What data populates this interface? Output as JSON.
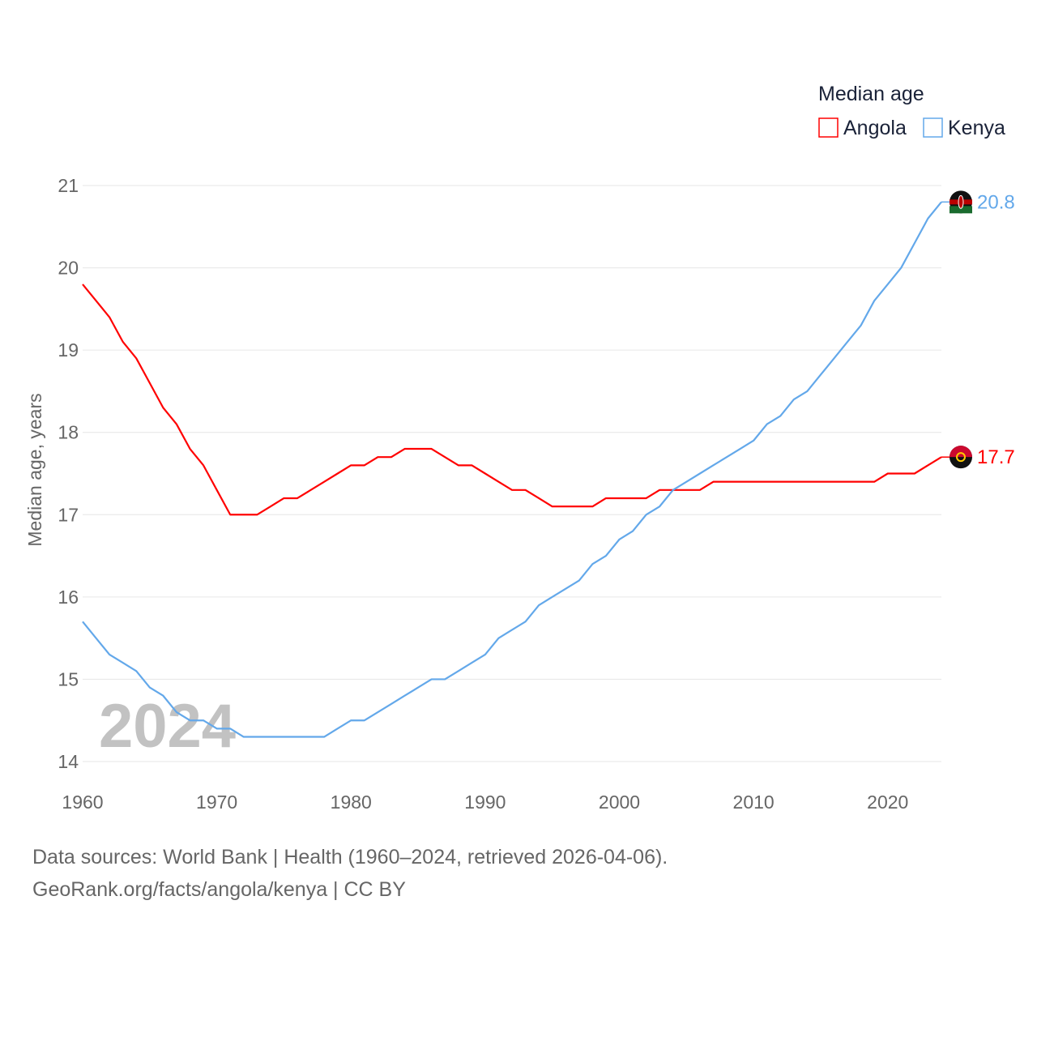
{
  "chart_data": {
    "type": "line",
    "title": "",
    "xlabel": "",
    "ylabel": "Median age, years",
    "xlim": [
      1960,
      2024
    ],
    "ylim": [
      14,
      21
    ],
    "x_ticks": [
      "1960",
      "1970",
      "1980",
      "1990",
      "2000",
      "2010",
      "2020"
    ],
    "y_ticks": [
      "14",
      "15",
      "16",
      "17",
      "18",
      "19",
      "20",
      "21"
    ],
    "grid": true,
    "legend": {
      "title": "Median age",
      "placement": "top-right"
    },
    "watermark_year": "2024",
    "x": [
      1960,
      1961,
      1962,
      1963,
      1964,
      1965,
      1966,
      1967,
      1968,
      1969,
      1970,
      1971,
      1972,
      1973,
      1974,
      1975,
      1976,
      1977,
      1978,
      1979,
      1980,
      1981,
      1982,
      1983,
      1984,
      1985,
      1986,
      1987,
      1988,
      1989,
      1990,
      1991,
      1992,
      1993,
      1994,
      1995,
      1996,
      1997,
      1998,
      1999,
      2000,
      2001,
      2002,
      2003,
      2004,
      2005,
      2006,
      2007,
      2008,
      2009,
      2010,
      2011,
      2012,
      2013,
      2014,
      2015,
      2016,
      2017,
      2018,
      2019,
      2020,
      2021,
      2022,
      2023,
      2024
    ],
    "series": [
      {
        "name": "Angola",
        "color": "#ff0000",
        "end_label": "17.7",
        "values": [
          19.8,
          19.6,
          19.4,
          19.1,
          18.9,
          18.6,
          18.3,
          18.1,
          17.8,
          17.6,
          17.3,
          17.0,
          17.0,
          17.0,
          17.1,
          17.2,
          17.2,
          17.3,
          17.4,
          17.5,
          17.6,
          17.6,
          17.7,
          17.7,
          17.8,
          17.8,
          17.8,
          17.7,
          17.6,
          17.6,
          17.5,
          17.4,
          17.3,
          17.3,
          17.2,
          17.1,
          17.1,
          17.1,
          17.1,
          17.2,
          17.2,
          17.2,
          17.2,
          17.3,
          17.3,
          17.3,
          17.3,
          17.4,
          17.4,
          17.4,
          17.4,
          17.4,
          17.4,
          17.4,
          17.4,
          17.4,
          17.4,
          17.4,
          17.4,
          17.4,
          17.5,
          17.5,
          17.5,
          17.6,
          17.7
        ]
      },
      {
        "name": "Kenya",
        "color": "#63a8ea",
        "end_label": "20.8",
        "values": [
          15.7,
          15.5,
          15.3,
          15.2,
          15.1,
          14.9,
          14.8,
          14.6,
          14.5,
          14.5,
          14.4,
          14.4,
          14.3,
          14.3,
          14.3,
          14.3,
          14.3,
          14.3,
          14.3,
          14.4,
          14.5,
          14.5,
          14.6,
          14.7,
          14.8,
          14.9,
          15.0,
          15.0,
          15.1,
          15.2,
          15.3,
          15.5,
          15.6,
          15.7,
          15.9,
          16.0,
          16.1,
          16.2,
          16.4,
          16.5,
          16.7,
          16.8,
          17.0,
          17.1,
          17.3,
          17.4,
          17.5,
          17.6,
          17.7,
          17.8,
          17.9,
          18.1,
          18.2,
          18.4,
          18.5,
          18.7,
          18.9,
          19.1,
          19.3,
          19.6,
          19.8,
          20.0,
          20.3,
          20.6,
          20.8
        ]
      }
    ]
  },
  "footer": {
    "sources": "Data sources: World Bank | Health (1960–2024, retrieved 2026-04-06).",
    "credit": "GeoRank.org/facts/angola/kenya | CC BY"
  }
}
